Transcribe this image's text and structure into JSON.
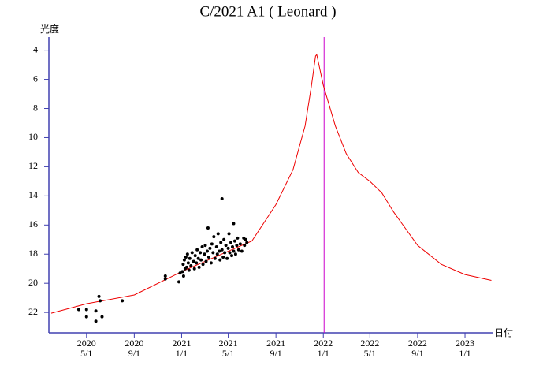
{
  "chart_data": {
    "type": "line",
    "title": "C/2021 A1 ( Leonard )",
    "y_label": "光度",
    "x_label": "日付",
    "xlim": [
      "2020-01-25",
      "2023-03-13"
    ],
    "ylim": [
      3.1,
      23.4
    ],
    "y_inverted": true,
    "yticks": [
      4,
      6,
      8,
      10,
      12,
      14,
      16,
      18,
      20,
      22
    ],
    "xticks": [
      {
        "value": "2020-05-01",
        "label": [
          "2020",
          "5/1"
        ]
      },
      {
        "value": "2020-09-01",
        "label": [
          "2020",
          "9/1"
        ]
      },
      {
        "value": "2021-01-01",
        "label": [
          "2021",
          "1/1"
        ]
      },
      {
        "value": "2021-05-01",
        "label": [
          "2021",
          "5/1"
        ]
      },
      {
        "value": "2021-09-01",
        "label": [
          "2021",
          "9/1"
        ]
      },
      {
        "value": "2022-01-01",
        "label": [
          "2022",
          "1/1"
        ]
      },
      {
        "value": "2022-05-01",
        "label": [
          "2022",
          "5/1"
        ]
      },
      {
        "value": "2022-09-01",
        "label": [
          "2022",
          "9/1"
        ]
      },
      {
        "value": "2023-01-01",
        "label": [
          "2023",
          "1/1"
        ]
      }
    ],
    "axis_color": "#4040b0",
    "vline": {
      "x": "2022-01-03",
      "color": "#cc00cc"
    },
    "series": [
      {
        "type": "line",
        "color": "#ee0000",
        "x": [
          "2020-01-31",
          "2020-05-01",
          "2020-09-01",
          "2021-01-01",
          "2021-05-01",
          "2021-07-01",
          "2021-09-01",
          "2021-10-15",
          "2021-11-15",
          "2021-12-01",
          "2021-12-12",
          "2021-12-15",
          "2021-12-20",
          "2022-01-01",
          "2022-02-01",
          "2022-03-01",
          "2022-04-01",
          "2022-05-01",
          "2022-06-01",
          "2022-07-01",
          "2022-09-01",
          "2022-11-01",
          "2023-01-01",
          "2023-03-10"
        ],
        "values": [
          22.05,
          21.4,
          20.8,
          19.2,
          17.8,
          17.1,
          14.6,
          12.2,
          9.2,
          6.5,
          4.4,
          4.3,
          4.9,
          6.4,
          9.2,
          11.1,
          12.4,
          13.0,
          13.8,
          15.1,
          17.4,
          18.7,
          19.4,
          19.8
        ]
      },
      {
        "type": "scatter",
        "color": "#000000",
        "x": [
          "2020-04-11",
          "2020-05-01",
          "2020-05-01",
          "2020-05-25",
          "2020-05-25",
          "2020-06-02",
          "2020-06-05",
          "2020-06-10",
          "2020-08-01",
          "2020-11-20",
          "2020-11-20",
          "2020-12-25",
          "2020-12-28",
          "2021-01-03",
          "2021-01-05",
          "2021-01-06",
          "2021-01-08",
          "2021-01-10",
          "2021-01-12",
          "2021-01-14",
          "2021-01-16",
          "2021-01-18",
          "2021-01-20",
          "2021-01-22",
          "2021-01-25",
          "2021-01-28",
          "2021-02-01",
          "2021-02-03",
          "2021-02-05",
          "2021-02-08",
          "2021-02-10",
          "2021-02-13",
          "2021-02-15",
          "2021-02-18",
          "2021-02-20",
          "2021-02-23",
          "2021-02-25",
          "2021-03-01",
          "2021-03-03",
          "2021-03-05",
          "2021-03-08",
          "2021-03-10",
          "2021-03-12",
          "2021-03-15",
          "2021-03-18",
          "2021-03-20",
          "2021-03-23",
          "2021-03-25",
          "2021-03-28",
          "2021-04-01",
          "2021-04-03",
          "2021-04-05",
          "2021-04-08",
          "2021-04-10",
          "2021-04-12",
          "2021-04-15",
          "2021-04-15",
          "2021-04-18",
          "2021-04-20",
          "2021-04-22",
          "2021-04-25",
          "2021-04-28",
          "2021-05-01",
          "2021-05-03",
          "2021-05-05",
          "2021-05-08",
          "2021-05-10",
          "2021-05-12",
          "2021-05-15",
          "2021-05-15",
          "2021-05-18",
          "2021-05-20",
          "2021-05-23",
          "2021-05-25",
          "2021-05-28",
          "2021-06-01",
          "2021-06-05",
          "2021-06-10",
          "2021-06-12",
          "2021-06-15",
          "2021-06-18"
        ],
        "values": [
          21.8,
          22.3,
          21.8,
          22.6,
          21.9,
          20.9,
          21.2,
          22.3,
          21.2,
          19.5,
          19.7,
          19.9,
          19.3,
          19.2,
          18.7,
          19.5,
          18.4,
          19.0,
          18.2,
          18.9,
          18.0,
          18.6,
          19.1,
          18.3,
          18.8,
          17.9,
          18.5,
          19.0,
          18.1,
          18.6,
          17.7,
          18.3,
          18.9,
          17.9,
          18.4,
          17.5,
          18.7,
          18.0,
          17.4,
          18.5,
          17.8,
          16.2,
          18.2,
          17.6,
          18.6,
          17.3,
          17.9,
          16.8,
          18.3,
          17.5,
          18.0,
          16.6,
          17.8,
          18.4,
          17.2,
          14.2,
          17.7,
          18.2,
          17.0,
          17.9,
          17.4,
          18.3,
          17.6,
          16.6,
          17.9,
          17.2,
          18.1,
          17.5,
          15.9,
          17.8,
          17.1,
          18.0,
          17.4,
          16.9,
          17.7,
          17.3,
          17.8,
          16.9,
          17.4,
          17.0,
          17.2
        ]
      }
    ]
  }
}
